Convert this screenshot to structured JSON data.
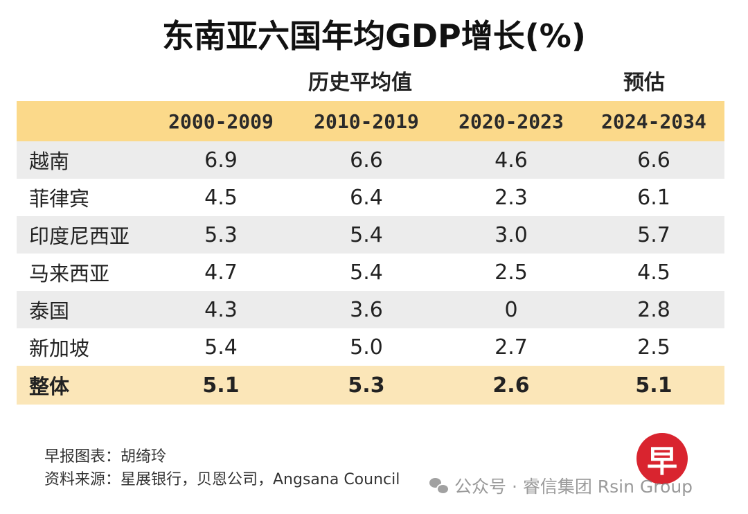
{
  "chart_data": {
    "type": "table",
    "title": "东南亚六国年均GDP增长(%)",
    "group_headers": {
      "historical": "历史平均值",
      "forecast": "预估"
    },
    "columns": [
      "",
      "2000-2009",
      "2010-2019",
      "2020-2023",
      "2024-2034"
    ],
    "rows": [
      {
        "country": "越南",
        "values": [
          "6.9",
          "6.6",
          "4.6",
          "6.6"
        ]
      },
      {
        "country": "菲律宾",
        "values": [
          "4.5",
          "6.4",
          "2.3",
          "6.1"
        ]
      },
      {
        "country": "印度尼西亚",
        "values": [
          "5.3",
          "5.4",
          "3.0",
          "5.7"
        ]
      },
      {
        "country": "马来西亚",
        "values": [
          "4.7",
          "5.4",
          "2.5",
          "4.5"
        ]
      },
      {
        "country": "泰国",
        "values": [
          "4.3",
          "3.6",
          "0",
          "2.8"
        ]
      },
      {
        "country": "新加坡",
        "values": [
          "5.4",
          "5.0",
          "2.7",
          "2.5"
        ]
      }
    ],
    "total": {
      "country": "整体",
      "values": [
        "5.1",
        "5.3",
        "2.6",
        "5.1"
      ]
    }
  },
  "credits": {
    "chart_by": "早报图表：胡绮玲",
    "source": "资料来源：星展银行，贝恩公司，Angsana Council"
  },
  "logo": {
    "glyph": "早",
    "color": "#d9242f",
    "icon": "zaobao-logo-icon"
  },
  "watermark": {
    "text": "公众号 · 睿信集团 Rsin Group",
    "icon": "wechat-icon"
  },
  "colors": {
    "header_bg": "#fbd98a",
    "total_bg": "#fbe6b8",
    "stripe_bg": "#ececec"
  }
}
